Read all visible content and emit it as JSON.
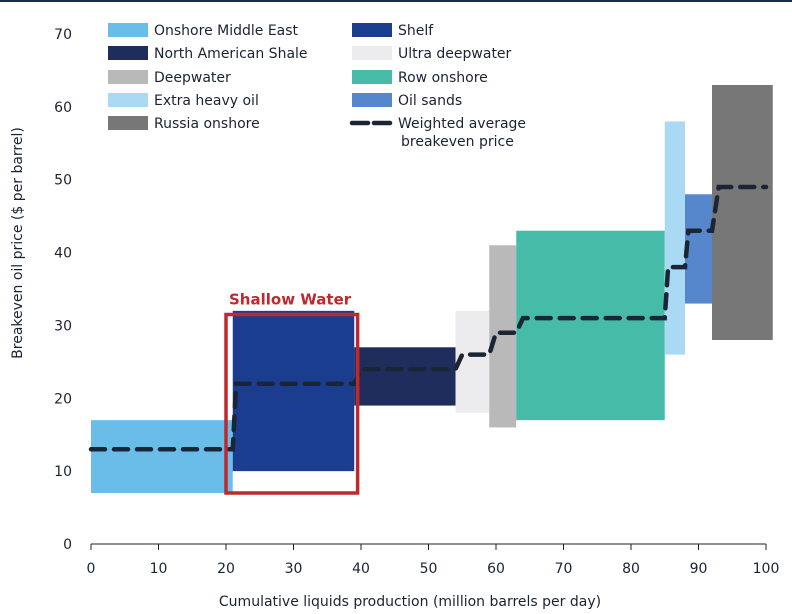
{
  "chart_data": {
    "type": "cost-curve",
    "xlabel": "Cumulative liquids production (million barrels per day)",
    "ylabel": "Breakeven oil price ($ per barrel)",
    "xlim": [
      0,
      100
    ],
    "ylim": [
      0,
      70
    ],
    "x_ticks": [
      "0",
      "10",
      "20",
      "30",
      "40",
      "50",
      "60",
      "70",
      "80",
      "90",
      "100"
    ],
    "y_ticks": [
      "0",
      "10",
      "20",
      "30",
      "40",
      "50",
      "60",
      "70"
    ],
    "segments": [
      {
        "name": "Onshore Middle East",
        "x0": 0,
        "x1": 21,
        "low": 7,
        "high": 17,
        "color": "#6bbde9"
      },
      {
        "name": "Shelf",
        "x0": 21,
        "x1": 39,
        "low": 10,
        "high": 32,
        "color": "#1a3d8f"
      },
      {
        "name": "North American Shale",
        "x0": 39,
        "x1": 54,
        "low": 19,
        "high": 27,
        "color": "#1f2d5c"
      },
      {
        "name": "Ultra deepwater",
        "x0": 54,
        "x1": 59,
        "low": 18,
        "high": 32,
        "color": "#ececee"
      },
      {
        "name": "Deepwater",
        "x0": 59,
        "x1": 63,
        "low": 16,
        "high": 41,
        "color": "#b9b9b9"
      },
      {
        "name": "Row onshore",
        "x0": 63,
        "x1": 85,
        "low": 17,
        "high": 43,
        "color": "#45bba8"
      },
      {
        "name": "Extra heavy oil",
        "x0": 85,
        "x1": 88,
        "low": 26,
        "high": 58,
        "color": "#a9d9f3"
      },
      {
        "name": "Oil sands",
        "x0": 88,
        "x1": 92,
        "low": 33,
        "high": 48,
        "color": "#5686cc"
      },
      {
        "name": "Russia onshore",
        "x0": 92,
        "x1": 101,
        "low": 28,
        "high": 63,
        "color": "#777777"
      }
    ],
    "weighted_average": {
      "name": "Weighted average breakeven price",
      "color": "#1a2535",
      "x": [
        0,
        21,
        21.5,
        39,
        40,
        54,
        55,
        59,
        60,
        63,
        64,
        85,
        85.5,
        88,
        88.5,
        92,
        93,
        100
      ],
      "y": [
        13,
        13,
        22,
        22,
        24,
        24,
        26,
        26,
        29,
        29,
        31,
        31,
        38,
        38,
        43,
        43,
        49,
        49
      ]
    },
    "legend": [
      {
        "label": "Onshore Middle East",
        "color": "#6bbde9",
        "kind": "box"
      },
      {
        "label": "North American Shale",
        "color": "#1f2d5c",
        "kind": "box"
      },
      {
        "label": "Deepwater",
        "color": "#b9b9b9",
        "kind": "box"
      },
      {
        "label": "Extra heavy oil",
        "color": "#a9d9f3",
        "kind": "box"
      },
      {
        "label": "Russia onshore",
        "color": "#777777",
        "kind": "box"
      },
      {
        "label": "Shelf",
        "color": "#1a3d8f",
        "kind": "box"
      },
      {
        "label": "Ultra deepwater",
        "color": "#ececee",
        "kind": "box"
      },
      {
        "label": "Row onshore",
        "color": "#45bba8",
        "kind": "box"
      },
      {
        "label": "Oil sands",
        "color": "#5686cc",
        "kind": "box"
      },
      {
        "label": "Weighted average",
        "label2": "breakeven price",
        "color": "#1a2535",
        "kind": "dash"
      }
    ],
    "highlight": {
      "label": "Shallow Water",
      "color": "#c0282d",
      "x0": 20,
      "x1": 39.5,
      "y0": 7,
      "y1": 31.5
    }
  }
}
